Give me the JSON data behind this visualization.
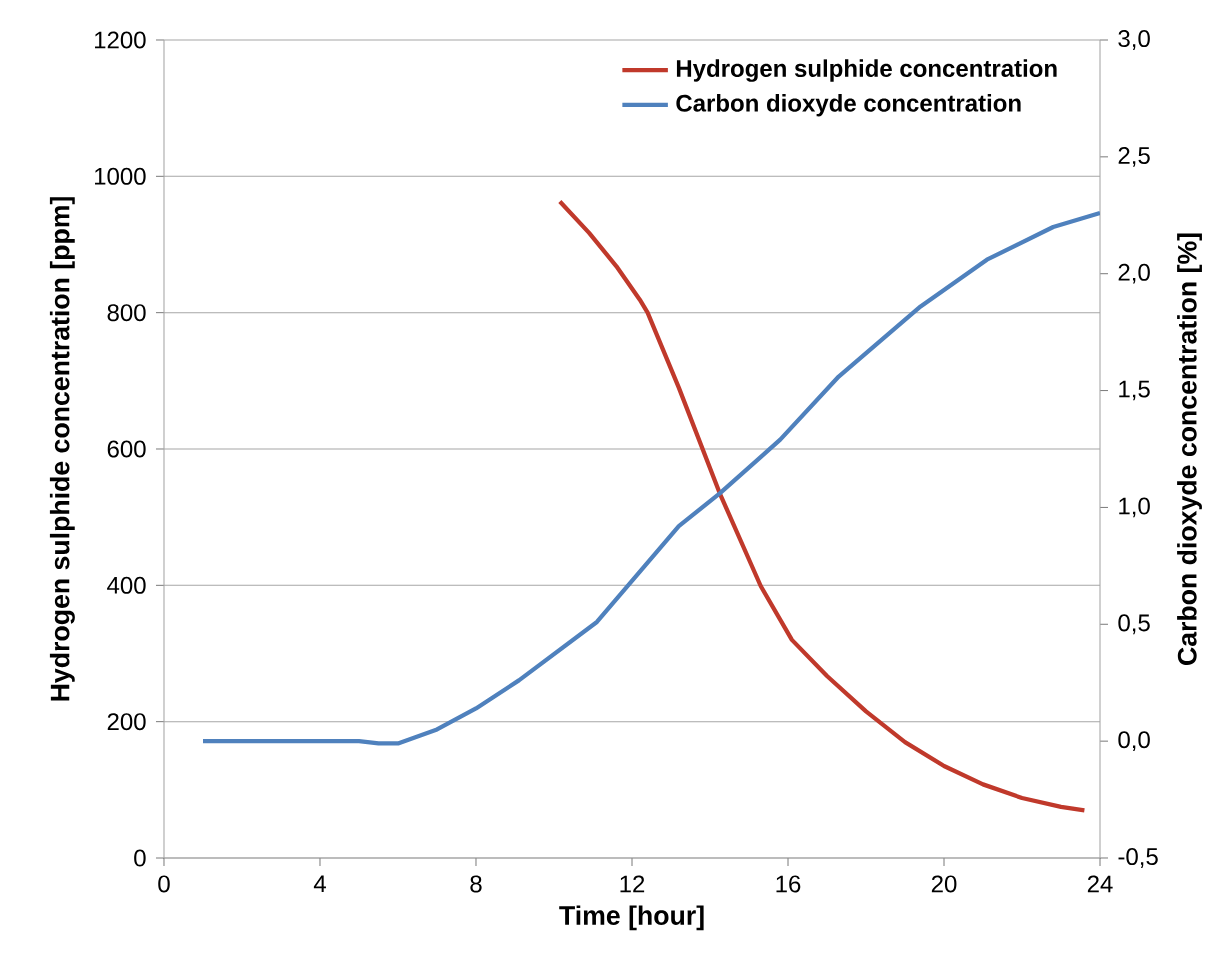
{
  "chart_data": {
    "type": "line",
    "xlabel": "Time [hour]",
    "ylabel": "Hydrogen sulphide concentration [ppm]",
    "y2label": "Carbon dioxyde concentration [%]",
    "xlim": [
      0,
      24
    ],
    "xticks": [
      0,
      4,
      8,
      12,
      16,
      20,
      24
    ],
    "ylim": [
      0,
      1200
    ],
    "yticks": [
      0,
      200,
      400,
      600,
      800,
      1000,
      1200
    ],
    "y2lim": [
      -0.5,
      3.0
    ],
    "y2ticks": [
      {
        "value": -0.5,
        "label": "-0,5"
      },
      {
        "value": 0.0,
        "label": "0,0"
      },
      {
        "value": 0.5,
        "label": "0,5"
      },
      {
        "value": 1.0,
        "label": "1,0"
      },
      {
        "value": 1.5,
        "label": "1,5"
      },
      {
        "value": 2.0,
        "label": "2,0"
      },
      {
        "value": 2.5,
        "label": "2,5"
      },
      {
        "value": 3.0,
        "label": "3,0"
      }
    ],
    "grid": "y",
    "legend": "top right",
    "line_style": "solid",
    "series": [
      {
        "name": "Hydrogen sulphide concentration",
        "color": "#c0392b",
        "x": [
          10.15,
          10.9,
          11.6,
          12.2,
          12.4,
          13.2,
          14.25,
          15.3,
          16.1,
          17.0,
          18.0,
          19.0,
          20.0,
          21.0,
          22.0,
          23.0,
          23.6
        ],
        "values": [
          963,
          917,
          868,
          819,
          800,
          690,
          535,
          399,
          320,
          267,
          215,
          170,
          135,
          108,
          88,
          75,
          70
        ]
      },
      {
        "name": "Carbon dioxyde concentration",
        "color": "#4f81bd",
        "axis": "y2",
        "x": [
          1,
          3,
          5,
          5.5,
          6,
          7,
          8,
          9.1,
          11.1,
          13.2,
          14.25,
          15.8,
          17.3,
          19.4,
          21.1,
          22.8,
          24
        ],
        "values": [
          0.0,
          0.0,
          0.0,
          -0.01,
          -0.01,
          0.05,
          0.14,
          0.26,
          0.51,
          0.92,
          1.06,
          1.29,
          1.56,
          1.86,
          2.06,
          2.2,
          2.26
        ]
      }
    ]
  }
}
